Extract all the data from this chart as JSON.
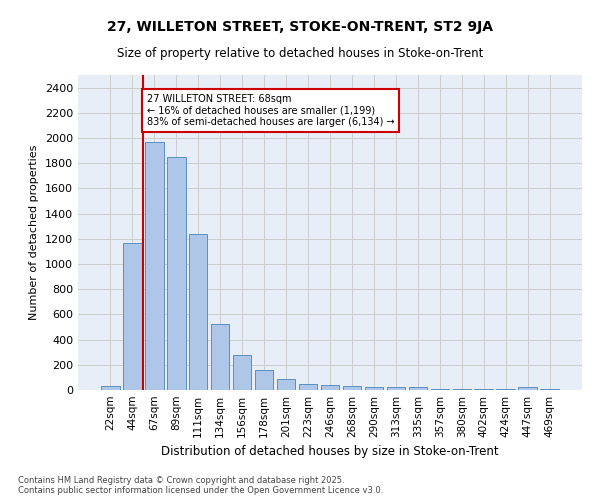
{
  "title_line1": "27, WILLETON STREET, STOKE-ON-TRENT, ST2 9JA",
  "title_line2": "Size of property relative to detached houses in Stoke-on-Trent",
  "xlabel": "Distribution of detached houses by size in Stoke-on-Trent",
  "ylabel": "Number of detached properties",
  "categories": [
    "22sqm",
    "44sqm",
    "67sqm",
    "89sqm",
    "111sqm",
    "134sqm",
    "156sqm",
    "178sqm",
    "201sqm",
    "223sqm",
    "246sqm",
    "268sqm",
    "290sqm",
    "313sqm",
    "335sqm",
    "357sqm",
    "380sqm",
    "402sqm",
    "424sqm",
    "447sqm",
    "469sqm"
  ],
  "values": [
    30,
    1170,
    1970,
    1850,
    1240,
    520,
    275,
    155,
    90,
    50,
    40,
    35,
    20,
    20,
    20,
    5,
    5,
    5,
    5,
    20,
    5
  ],
  "bar_color": "#aec6e8",
  "bar_edge_color": "#5a8fc2",
  "highlight_bar_index": 2,
  "highlight_line_color": "#cc0000",
  "annotation_text": "27 WILLETON STREET: 68sqm\n← 16% of detached houses are smaller (1,199)\n83% of semi-detached houses are larger (6,134) →",
  "annotation_box_color": "#cc0000",
  "ylim": [
    0,
    2500
  ],
  "yticks": [
    0,
    200,
    400,
    600,
    800,
    1000,
    1200,
    1400,
    1600,
    1800,
    2000,
    2200,
    2400
  ],
  "grid_color": "#cccccc",
  "background_color": "#e8eef8",
  "footer_line1": "Contains HM Land Registry data © Crown copyright and database right 2025.",
  "footer_line2": "Contains public sector information licensed under the Open Government Licence v3.0."
}
